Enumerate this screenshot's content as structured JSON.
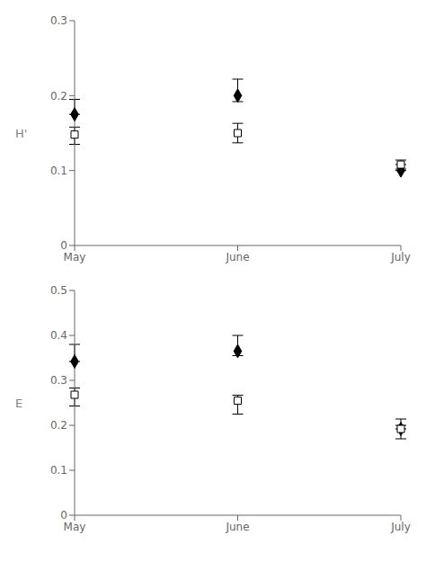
{
  "chart_data": [
    {
      "type": "scatter",
      "ylabel": "H'",
      "categories": [
        "May",
        "June",
        "July"
      ],
      "ylim": [
        0,
        0.3
      ],
      "yticks": [
        0,
        0.1,
        0.2,
        0.3
      ],
      "grid": false,
      "series": [
        {
          "color": "#000000",
          "marker": "diamond",
          "values": [
            0.175,
            0.2,
            0.1
          ],
          "err_up": [
            0.02,
            0.022,
            0.008
          ],
          "err_down": [
            0.0,
            0.008,
            0.0
          ]
        },
        {
          "color": "#000000",
          "marker": "open-square",
          "values": [
            0.148,
            0.15,
            0.108
          ],
          "err_up": [
            0.01,
            0.013,
            0.006
          ],
          "err_down": [
            0.013,
            0.013,
            0.006
          ]
        }
      ]
    },
    {
      "type": "scatter",
      "ylabel": "E",
      "categories": [
        "May",
        "June",
        "July"
      ],
      "ylim": [
        0,
        0.5
      ],
      "yticks": [
        0,
        0.1,
        0.2,
        0.3,
        0.4,
        0.5
      ],
      "grid": false,
      "series": [
        {
          "color": "#000000",
          "marker": "diamond",
          "values": [
            0.342,
            0.365,
            0.192
          ],
          "err_up": [
            0.038,
            0.035,
            0.008
          ],
          "err_down": [
            0.0,
            0.01,
            0.0
          ]
        },
        {
          "color": "#000000",
          "marker": "open-square",
          "values": [
            0.268,
            0.255,
            0.192
          ],
          "err_up": [
            0.015,
            0.012,
            0.022
          ],
          "err_down": [
            0.025,
            0.03,
            0.022
          ]
        }
      ]
    }
  ]
}
